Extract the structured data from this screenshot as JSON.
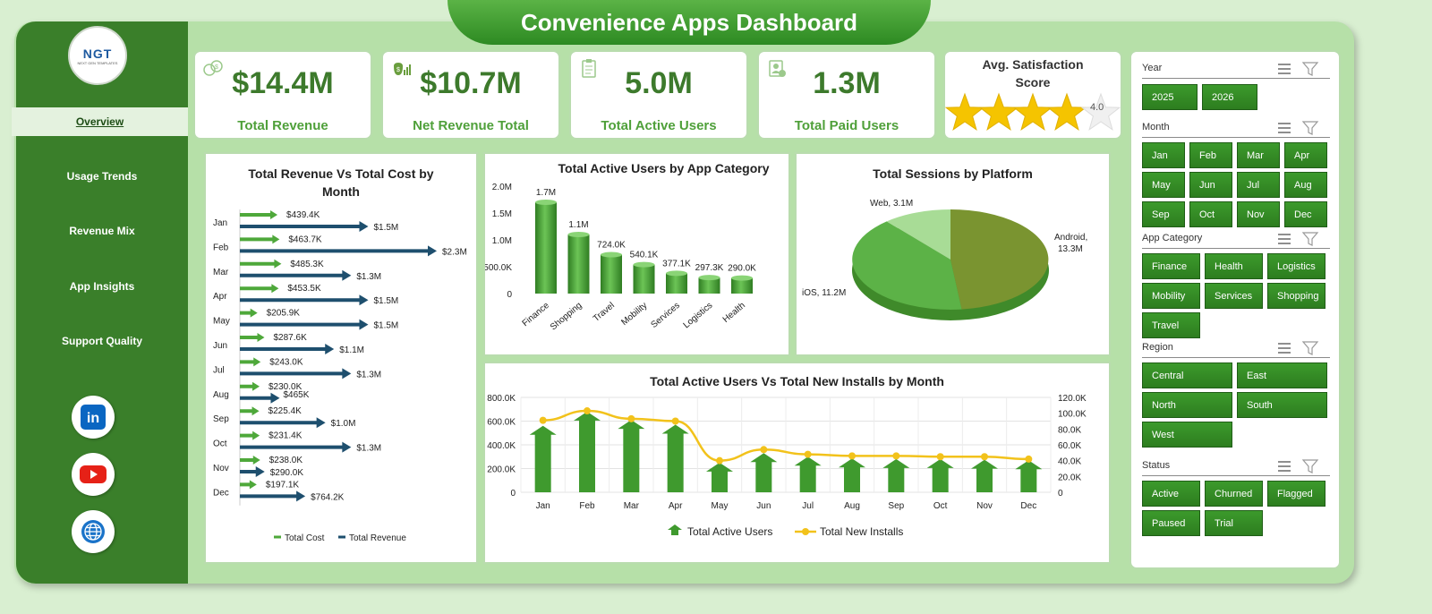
{
  "title": "Convenience Apps Dashboard",
  "logo": {
    "text": "NGT",
    "sub": "NEXT GEN TEMPLATES"
  },
  "nav": [
    "Overview",
    "Usage Trends",
    "Revenue Mix",
    "App Insights",
    "Support Quality"
  ],
  "social_icons": [
    "linkedin-icon",
    "youtube-icon",
    "globe-icon"
  ],
  "kpis": [
    {
      "value": "$14.4M",
      "label": "Total Revenue",
      "icon": "money-bag-icon"
    },
    {
      "value": "$10.7M",
      "label": "Net Revenue Total",
      "icon": "revenue-chart-icon"
    },
    {
      "value": "5.0M",
      "label": "Total Active Users",
      "icon": "clipboard-icon"
    },
    {
      "value": "1.3M",
      "label": "Total Paid Users",
      "icon": "paid-user-icon"
    }
  ],
  "satisfaction": {
    "title": "Avg. Satisfaction Score",
    "value": "4.0",
    "score": 4.0,
    "max": 5
  },
  "slicers": {
    "year": {
      "title": "Year",
      "options": [
        "2025",
        "2026"
      ]
    },
    "month": {
      "title": "Month",
      "options": [
        "Jan",
        "Feb",
        "Mar",
        "Apr",
        "May",
        "Jun",
        "Jul",
        "Aug",
        "Sep",
        "Oct",
        "Nov",
        "Dec"
      ]
    },
    "category": {
      "title": "App Category",
      "options": [
        "Finance",
        "Health",
        "Logistics",
        "Mobility",
        "Services",
        "Shopping",
        "Travel"
      ]
    },
    "region": {
      "title": "Region",
      "options": [
        "Central",
        "East",
        "North",
        "South",
        "West"
      ]
    },
    "status": {
      "title": "Status",
      "options": [
        "Active",
        "Churned",
        "Flagged",
        "Paused",
        "Trial"
      ]
    }
  },
  "chart_data": [
    {
      "type": "bar",
      "title": "Total Revenue Vs Total Cost by Month",
      "categories": [
        "Jan",
        "Feb",
        "Mar",
        "Apr",
        "May",
        "Jun",
        "Jul",
        "Aug",
        "Sep",
        "Oct",
        "Nov",
        "Dec"
      ],
      "series": [
        {
          "name": "Total Cost",
          "values": [
            439.4,
            463.7,
            485.3,
            453.5,
            205.9,
            287.6,
            243.0,
            230.0,
            225.4,
            231.4,
            238.0,
            197.1
          ],
          "labels": [
            "$439.4K",
            "$463.7K",
            "$485.3K",
            "$453.5K",
            "$205.9K",
            "$287.6K",
            "$243.0K",
            "$230.0K",
            "$225.4K",
            "$231.4K",
            "$238.0K",
            "$197.1K"
          ],
          "color": "#4ea83a"
        },
        {
          "name": "Total Revenue",
          "values": [
            1500,
            2300,
            1300,
            1500,
            1500,
            1100,
            1300,
            465,
            1000,
            1300,
            290,
            764.2
          ],
          "labels": [
            "$1.5M",
            "$2.3M",
            "$1.3M",
            "$1.5M",
            "$1.5M",
            "$1.1M",
            "$1.3M",
            "$465K",
            "$1.0M",
            "$1.3M",
            "$290.0K",
            "$764.2K"
          ],
          "color": "#1e4f6e"
        }
      ],
      "legend": [
        "Total Cost",
        "Total Revenue"
      ],
      "units": "thousands"
    },
    {
      "type": "bar",
      "title": "Total Active Users by App Category",
      "categories": [
        "Finance",
        "Shopping",
        "Travel",
        "Mobility",
        "Services",
        "Logistics",
        "Health"
      ],
      "values": [
        1700,
        1100,
        724.0,
        540.1,
        377.1,
        297.3,
        290.0
      ],
      "labels": [
        "1.7M",
        "1.1M",
        "724.0K",
        "540.1K",
        "377.1K",
        "297.3K",
        "290.0K"
      ],
      "yticks": [
        "0",
        "500.0K",
        "1.0M",
        "1.5M",
        "2.0M"
      ],
      "ylim": [
        0,
        2000
      ]
    },
    {
      "type": "pie",
      "title": "Total Sessions by Platform",
      "slices": [
        {
          "name": "Android",
          "value": 13.3,
          "label": "Android, 13.3M",
          "color": "#7a9430"
        },
        {
          "name": "iOS",
          "value": 11.2,
          "label": "iOS, 11.2M",
          "color": "#5cb247"
        },
        {
          "name": "Web",
          "value": 3.1,
          "label": "Web, 3.1M",
          "color": "#a8dc96"
        }
      ]
    },
    {
      "type": "line",
      "title": "Total Active Users Vs Total New Installs by Month",
      "categories": [
        "Jan",
        "Feb",
        "Mar",
        "Apr",
        "May",
        "Jun",
        "Jul",
        "Aug",
        "Sep",
        "Oct",
        "Nov",
        "Dec"
      ],
      "series": [
        {
          "name": "Total Active Users",
          "type": "bar",
          "values": [
            560,
            680,
            610,
            570,
            250,
            330,
            300,
            285,
            280,
            280,
            275,
            270
          ],
          "color": "#3f9a2e"
        },
        {
          "name": "Total New Installs",
          "type": "line",
          "values": [
            91,
            103,
            93,
            90,
            40,
            54,
            48,
            46,
            46,
            45,
            45,
            42
          ],
          "color": "#f2c21b"
        }
      ],
      "y1ticks": [
        "0",
        "200.0K",
        "400.0K",
        "600.0K",
        "800.0K"
      ],
      "y1lim": [
        0,
        800
      ],
      "y2ticks": [
        "0",
        "20.0K",
        "40.0K",
        "60.0K",
        "80.0K",
        "100.0K",
        "120.0K"
      ],
      "y2lim": [
        0,
        120
      ]
    }
  ]
}
